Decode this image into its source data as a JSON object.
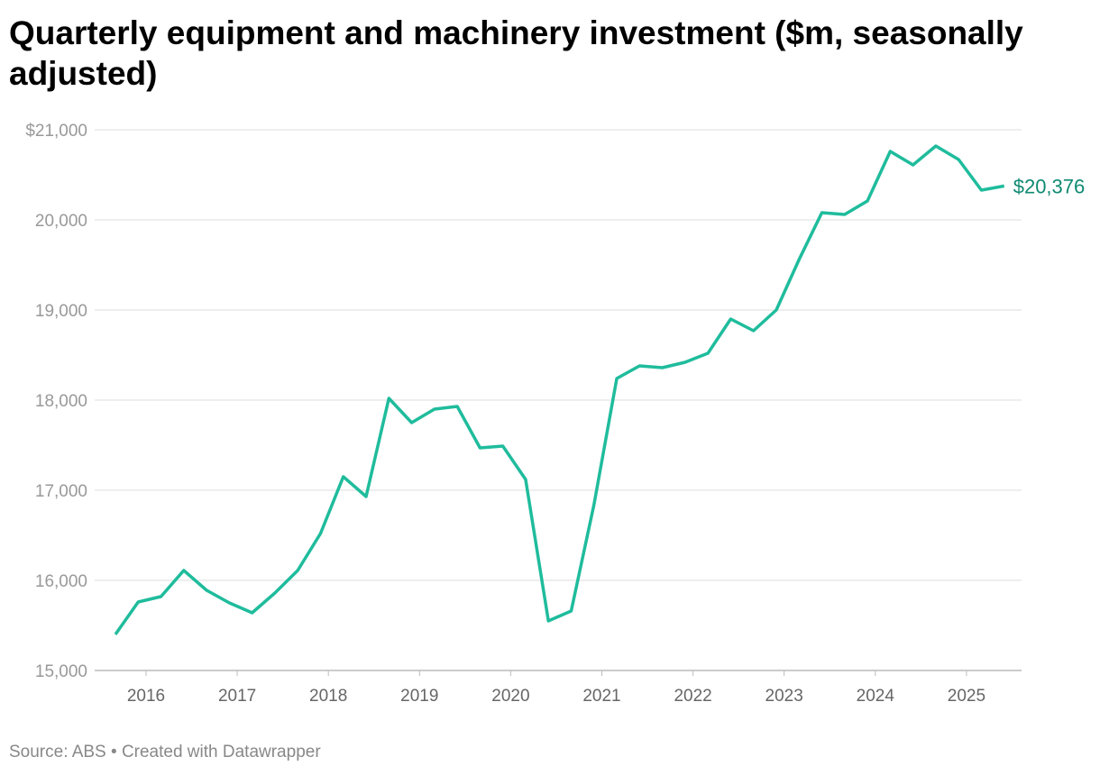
{
  "chart_data": {
    "type": "line",
    "title": "Quarterly equipment and machinery investment ($m, seasonally adjusted)",
    "xlabel": "",
    "ylabel": "",
    "ylim": [
      15000,
      21000
    ],
    "yticks": [
      15000,
      16000,
      17000,
      18000,
      19000,
      20000,
      21000
    ],
    "ytick_labels": [
      "15,000",
      "16,000",
      "17,000",
      "18,000",
      "19,000",
      "20,000",
      "$21,000"
    ],
    "xticks": [
      "2016",
      "2017",
      "2018",
      "2019",
      "2020",
      "2021",
      "2022",
      "2023",
      "2024",
      "2025"
    ],
    "grid": true,
    "line_color": "#1fbc9c",
    "label_color": "#0f8a72",
    "end_label": "$20,376",
    "x": [
      "2015-09",
      "2015-12",
      "2016-03",
      "2016-06",
      "2016-09",
      "2016-12",
      "2017-03",
      "2017-06",
      "2017-09",
      "2017-12",
      "2018-03",
      "2018-06",
      "2018-09",
      "2018-12",
      "2019-03",
      "2019-06",
      "2019-09",
      "2019-12",
      "2020-03",
      "2020-06",
      "2020-09",
      "2020-12",
      "2021-03",
      "2021-06",
      "2021-09",
      "2021-12",
      "2022-03",
      "2022-06",
      "2022-09",
      "2022-12",
      "2023-03",
      "2023-06",
      "2023-09",
      "2023-12",
      "2024-03",
      "2024-06",
      "2024-09",
      "2024-12",
      "2025-03",
      "2025-06"
    ],
    "values": [
      15400,
      15760,
      15820,
      16110,
      15890,
      15750,
      15640,
      15860,
      16110,
      16520,
      17150,
      16930,
      18020,
      17750,
      17900,
      17930,
      17470,
      17490,
      17120,
      15550,
      15660,
      16840,
      18240,
      18380,
      18360,
      18420,
      18520,
      18900,
      18770,
      19000,
      19560,
      20080,
      20060,
      20210,
      20760,
      20610,
      20820,
      20670,
      20330,
      20376
    ]
  },
  "footer": "Source: ABS • Created with Datawrapper"
}
